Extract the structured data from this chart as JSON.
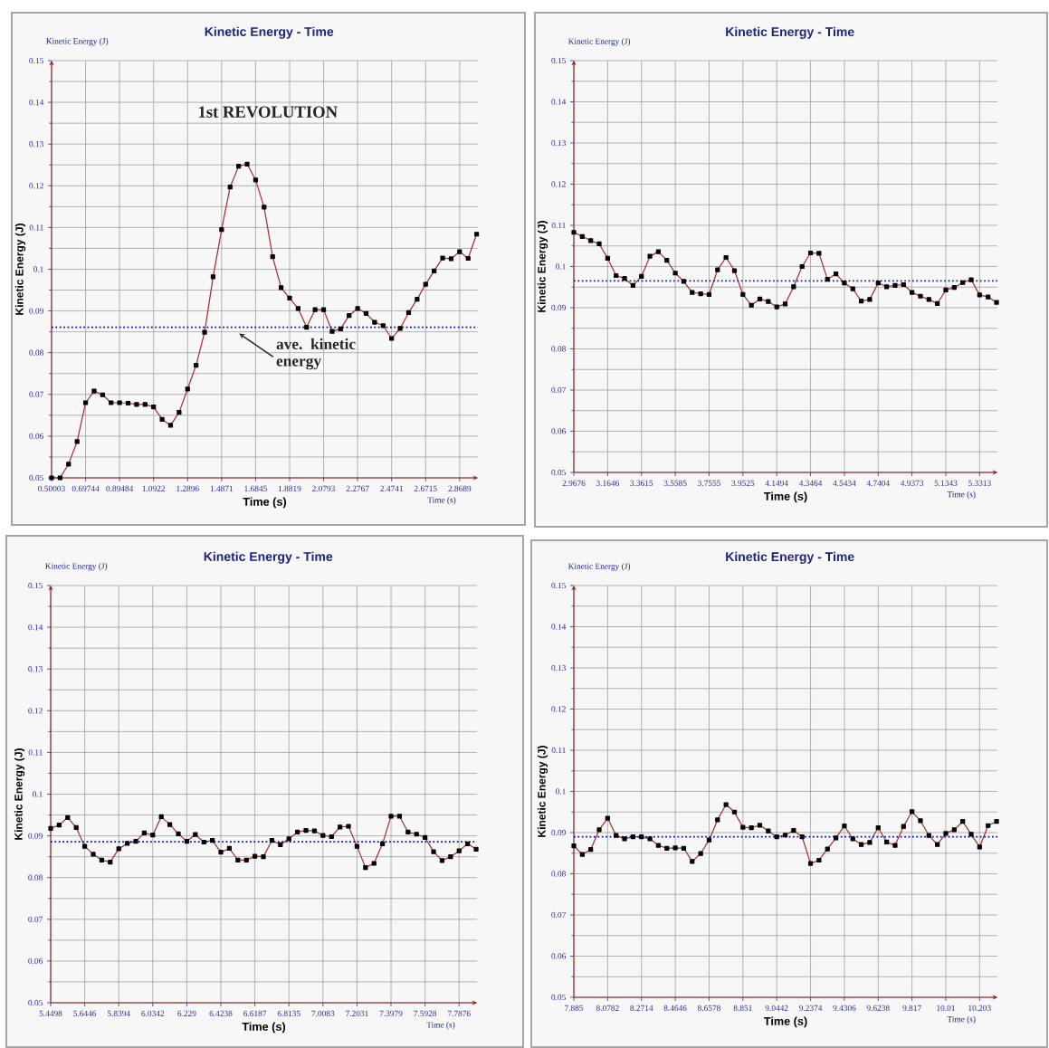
{
  "chart_data": [
    {
      "type": "line",
      "title": "Kinetic Energy - Time",
      "xlabel": "Time (s)",
      "ylabel": "Kinetic Energy (J)",
      "annotations": [
        "Kinetic Energy (J)",
        "Time (s)",
        "1st REVOLUTION"
      ],
      "color": "#a52a2a",
      "marker": "square",
      "line_style": "solid",
      "grid": true,
      "xlim": [
        0.50003,
        2.975
      ],
      "ylim": [
        0.05,
        0.15
      ],
      "xticks": [
        0.50003,
        0.69744,
        0.89484,
        1.0922,
        1.2896,
        1.4871,
        1.6845,
        1.8819,
        2.0793,
        2.2767,
        2.4741,
        2.6715,
        2.8689
      ],
      "yticks": [
        0.05,
        0.06,
        0.07,
        0.08,
        0.09,
        0.1,
        0.11,
        0.12,
        0.13,
        0.14,
        0.15
      ],
      "ref_lines": [
        {
          "axis": "y",
          "value": 0.0861,
          "label": "ave. kinetic energy",
          "color": "#0000cc",
          "line_style": "dotted"
        }
      ],
      "x": [
        0.50003,
        0.5494,
        0.5987,
        0.6481,
        0.6974,
        0.7468,
        0.7961,
        0.8455,
        0.8948,
        0.9442,
        0.9935,
        1.0429,
        1.0922,
        1.1416,
        1.1909,
        1.2403,
        1.2896,
        1.339,
        1.3883,
        1.4377,
        1.4871,
        1.5364,
        1.5858,
        1.6351,
        1.6845,
        1.7338,
        1.7832,
        1.8325,
        1.8819,
        1.9312,
        1.9806,
        2.0299,
        2.0793,
        2.1286,
        2.178,
        2.2273,
        2.2767,
        2.3261,
        2.3754,
        2.4248,
        2.4741,
        2.5235,
        2.5728,
        2.6222,
        2.6715,
        2.7209,
        2.7702,
        2.8196,
        2.8689,
        2.9183,
        2.9676
      ],
      "values": [
        0.05,
        0.05,
        0.0533,
        0.0587,
        0.068,
        0.0708,
        0.0699,
        0.068,
        0.068,
        0.0679,
        0.0676,
        0.0676,
        0.067,
        0.064,
        0.0626,
        0.0657,
        0.0713,
        0.077,
        0.0849,
        0.0982,
        0.1095,
        0.1197,
        0.1247,
        0.1252,
        0.1214,
        0.1149,
        0.103,
        0.0956,
        0.0931,
        0.0906,
        0.0861,
        0.0903,
        0.0903,
        0.0851,
        0.0857,
        0.0889,
        0.0906,
        0.0894,
        0.0873,
        0.0865,
        0.0834,
        0.0858,
        0.0896,
        0.0928,
        0.0964,
        0.0996,
        0.1027,
        0.1025,
        0.1042,
        0.1026,
        0.1084
      ]
    },
    {
      "type": "line",
      "title": "Kinetic Energy - Time",
      "xlabel": "Time (s)",
      "ylabel": "Kinetic Energy (J)",
      "annotations": [
        "Kinetic Energy (J)",
        "Time (s)"
      ],
      "color": "#a52a2a",
      "marker": "square",
      "line_style": "solid",
      "grid": true,
      "xlim": [
        2.9676,
        5.435
      ],
      "ylim": [
        0.05,
        0.15
      ],
      "xticks": [
        2.9676,
        3.1646,
        3.3615,
        3.5585,
        3.7555,
        3.9525,
        4.1494,
        4.3464,
        4.5434,
        4.7404,
        4.9373,
        5.1343,
        5.3313
      ],
      "yticks": [
        0.05,
        0.06,
        0.07,
        0.08,
        0.09,
        0.1,
        0.11,
        0.12,
        0.13,
        0.14,
        0.15
      ],
      "ref_lines": [
        {
          "axis": "y",
          "value": 0.0965,
          "color": "#1a237e",
          "line_style": "dotted"
        }
      ],
      "x": [
        2.9676,
        3.0168,
        3.0661,
        3.1153,
        3.1646,
        3.2138,
        3.2631,
        3.3123,
        3.3616,
        3.4108,
        3.4601,
        3.5093,
        3.5585,
        3.6078,
        3.657,
        3.7063,
        3.7555,
        3.8048,
        3.854,
        3.9033,
        3.9525,
        4.0017,
        4.051,
        4.1002,
        4.1495,
        4.1987,
        4.248,
        4.2972,
        4.3465,
        4.3957,
        4.4449,
        4.4942,
        4.5434,
        4.5927,
        4.6419,
        4.6912,
        4.7404,
        4.7897,
        4.8389,
        4.8881,
        4.9374,
        4.9866,
        5.0359,
        5.0851,
        5.1344,
        5.1836,
        5.2329,
        5.2821,
        5.3313,
        5.3806,
        5.4298
      ],
      "values": [
        0.1083,
        0.1073,
        0.1063,
        0.1055,
        0.102,
        0.0978,
        0.0971,
        0.0954,
        0.0976,
        0.1025,
        0.1036,
        0.1015,
        0.0984,
        0.0964,
        0.0937,
        0.0934,
        0.0932,
        0.0992,
        0.1022,
        0.099,
        0.0932,
        0.0906,
        0.0921,
        0.0915,
        0.0902,
        0.0909,
        0.0951,
        0.1,
        0.1033,
        0.1032,
        0.0969,
        0.0982,
        0.096,
        0.0946,
        0.0916,
        0.092,
        0.096,
        0.0951,
        0.0954,
        0.0956,
        0.0937,
        0.0928,
        0.092,
        0.091,
        0.0943,
        0.0949,
        0.0961,
        0.0968,
        0.0931,
        0.0926,
        0.0913
      ]
    },
    {
      "type": "line",
      "title": "Kinetic Energy - Time",
      "xlabel": "Time (s)",
      "ylabel": "Kinetic Energy (J)",
      "annotations": [
        "Kinetic Energy (J)",
        "Time (s)"
      ],
      "color": "#a52a2a",
      "marker": "square",
      "line_style": "solid",
      "grid": true,
      "xlim": [
        5.4498,
        7.89
      ],
      "ylim": [
        0.05,
        0.15
      ],
      "xticks": [
        5.4498,
        5.6446,
        5.8394,
        6.0342,
        6.229,
        6.4238,
        6.6187,
        6.8135,
        7.0083,
        7.2031,
        7.3979,
        7.5928,
        7.7876
      ],
      "yticks": [
        0.05,
        0.06,
        0.07,
        0.08,
        0.09,
        0.1,
        0.11,
        0.12,
        0.13,
        0.14,
        0.15
      ],
      "ref_lines": [
        {
          "axis": "y",
          "value": 0.0886,
          "color": "#0000cc",
          "line_style": "dotted"
        }
      ],
      "x": [
        5.4498,
        5.4985,
        5.5472,
        5.5959,
        5.6446,
        5.6933,
        5.742,
        5.7907,
        5.8394,
        5.8881,
        5.9368,
        5.9855,
        6.0342,
        6.0829,
        6.1317,
        6.1804,
        6.2291,
        6.2778,
        6.3265,
        6.3752,
        6.4239,
        6.4726,
        6.5213,
        6.57,
        6.6187,
        6.6674,
        6.7161,
        6.7648,
        6.8135,
        6.8622,
        6.9109,
        6.9596,
        7.0083,
        7.057,
        7.1057,
        7.1544,
        7.2031,
        7.2518,
        7.3005,
        7.3492,
        7.3979,
        7.4467,
        7.4954,
        7.5441,
        7.5928,
        7.6415,
        7.6902,
        7.7389,
        7.7876,
        7.8363,
        7.885
      ],
      "values": [
        0.0918,
        0.0926,
        0.0944,
        0.092,
        0.0875,
        0.0856,
        0.0842,
        0.0837,
        0.0869,
        0.0882,
        0.0887,
        0.0907,
        0.0902,
        0.0946,
        0.0927,
        0.0905,
        0.0887,
        0.0903,
        0.0885,
        0.0889,
        0.0861,
        0.087,
        0.0842,
        0.0842,
        0.0851,
        0.085,
        0.0889,
        0.0879,
        0.0893,
        0.0909,
        0.0913,
        0.0912,
        0.0901,
        0.0898,
        0.0921,
        0.0923,
        0.0875,
        0.0824,
        0.0834,
        0.0881,
        0.0947,
        0.0947,
        0.0909,
        0.0904,
        0.0896,
        0.0862,
        0.0841,
        0.085,
        0.0864,
        0.0881,
        0.0868
      ]
    },
    {
      "type": "line",
      "title": "Kinetic Energy - Time",
      "xlabel": "Time (s)",
      "ylabel": "Kinetic Energy (J)",
      "annotations": [
        "Kinetic Energy (J)",
        "Time (s)"
      ],
      "color": "#a52a2a",
      "marker": "square",
      "line_style": "solid",
      "grid": true,
      "xlim": [
        7.885,
        10.305
      ],
      "ylim": [
        0.05,
        0.15
      ],
      "xticks": [
        7.885,
        8.0782,
        8.2714,
        8.4646,
        8.6578,
        8.851,
        9.0442,
        9.2374,
        9.4306,
        9.6238,
        9.817,
        10.01,
        10.203
      ],
      "yticks": [
        0.05,
        0.06,
        0.07,
        0.08,
        0.09,
        0.1,
        0.11,
        0.12,
        0.13,
        0.14,
        0.15
      ],
      "ref_lines": [
        {
          "axis": "y",
          "value": 0.089,
          "color": "#0000cc",
          "line_style": "dotted"
        }
      ],
      "x": [
        7.885,
        7.9333,
        7.9816,
        8.0299,
        8.0782,
        8.1265,
        8.1748,
        8.2231,
        8.2714,
        8.3197,
        8.368,
        8.4163,
        8.4646,
        8.5129,
        8.5612,
        8.6095,
        8.6578,
        8.7061,
        8.7544,
        8.8027,
        8.851,
        8.8993,
        8.9476,
        8.9959,
        9.0442,
        9.0925,
        9.1408,
        9.1891,
        9.2374,
        9.2857,
        9.334,
        9.3823,
        9.4306,
        9.4789,
        9.5272,
        9.5755,
        9.6238,
        9.6721,
        9.7204,
        9.7687,
        9.817,
        9.8653,
        9.9136,
        9.9619,
        10.0102,
        10.0585,
        10.1068,
        10.1551,
        10.2034,
        10.2517,
        10.3
      ],
      "values": [
        0.0868,
        0.0847,
        0.0859,
        0.0907,
        0.0935,
        0.0893,
        0.0885,
        0.089,
        0.089,
        0.0885,
        0.0869,
        0.0862,
        0.0863,
        0.0862,
        0.083,
        0.0849,
        0.0882,
        0.0931,
        0.0968,
        0.095,
        0.0913,
        0.0912,
        0.0918,
        0.0904,
        0.089,
        0.0894,
        0.0905,
        0.089,
        0.0825,
        0.0833,
        0.086,
        0.0887,
        0.0916,
        0.0885,
        0.0871,
        0.0876,
        0.0912,
        0.0877,
        0.0869,
        0.0915,
        0.0951,
        0.0929,
        0.0893,
        0.0871,
        0.0898,
        0.0907,
        0.0927,
        0.0896,
        0.0865,
        0.0917,
        0.0927
      ]
    }
  ]
}
